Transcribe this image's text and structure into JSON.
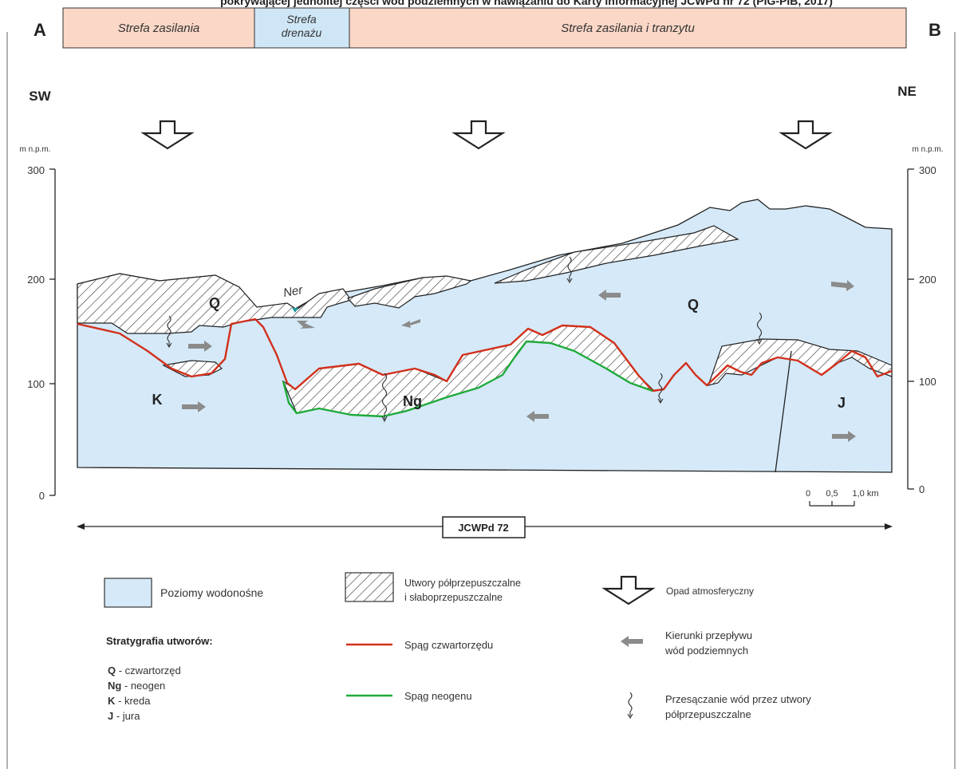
{
  "header": {
    "cut_title": "pokrywającej jednolitej części wód podziemnych w nawiązaniu do Karty informacyjnej JCWPd nr 72 (PIG-PIB, 2017)",
    "corner_left": "A",
    "corner_right": "B",
    "zones": [
      {
        "label": "Strefa zasilania",
        "type": "recharge",
        "color": "#fbd7c7"
      },
      {
        "label": "Strefa drenażu",
        "type": "drainage",
        "color": "#cfe6f6"
      },
      {
        "label": "Strefa zasilania i tranzytu",
        "type": "recharge",
        "color": "#fbd7c7"
      }
    ]
  },
  "orientation": {
    "left": "SW",
    "right": "NE"
  },
  "axis": {
    "unit_left": "m n.p.m.",
    "unit_right": "m n.p.m.",
    "ticks": [
      "300",
      "200",
      "100",
      "0"
    ]
  },
  "section_labels": {
    "river": "Ner",
    "units": [
      "Q",
      "Q",
      "K",
      "Ng",
      "J"
    ]
  },
  "scale_bar": {
    "labels": [
      "0",
      "0,5",
      "1,0 km"
    ]
  },
  "extent_label": "JCWPd 72",
  "legend": {
    "aquifer": "Poziomy wodonośne",
    "semi_permeable": [
      "Utwory półprzepuszczalne",
      "i słaboprzepuszczalne"
    ],
    "precipitation": "Opad atmosferyczny",
    "flow": [
      "Kierunki przepływu",
      "wód podziemnych"
    ],
    "seepage": [
      "Przesączanie wód przez utwory",
      "półprzepuszczalne"
    ],
    "quaternary_base": "Spąg czwartorzędu",
    "neogene_base": "Spąg neogenu",
    "strat_title": "Stratygrafia utworów:",
    "strat_items": [
      {
        "code": "Q",
        "name": " - czwartorzęd"
      },
      {
        "code": "Ng",
        "name": " -  neogen"
      },
      {
        "code": "K",
        "name": " - kreda"
      },
      {
        "code": "J",
        "name": " - jura"
      }
    ]
  },
  "colors": {
    "aquifer_fill": "#d5e9f8",
    "quaternary_line": "#d2301c",
    "neogene_line": "#1faa3a",
    "flow_arrow": "#8b8b8b"
  }
}
